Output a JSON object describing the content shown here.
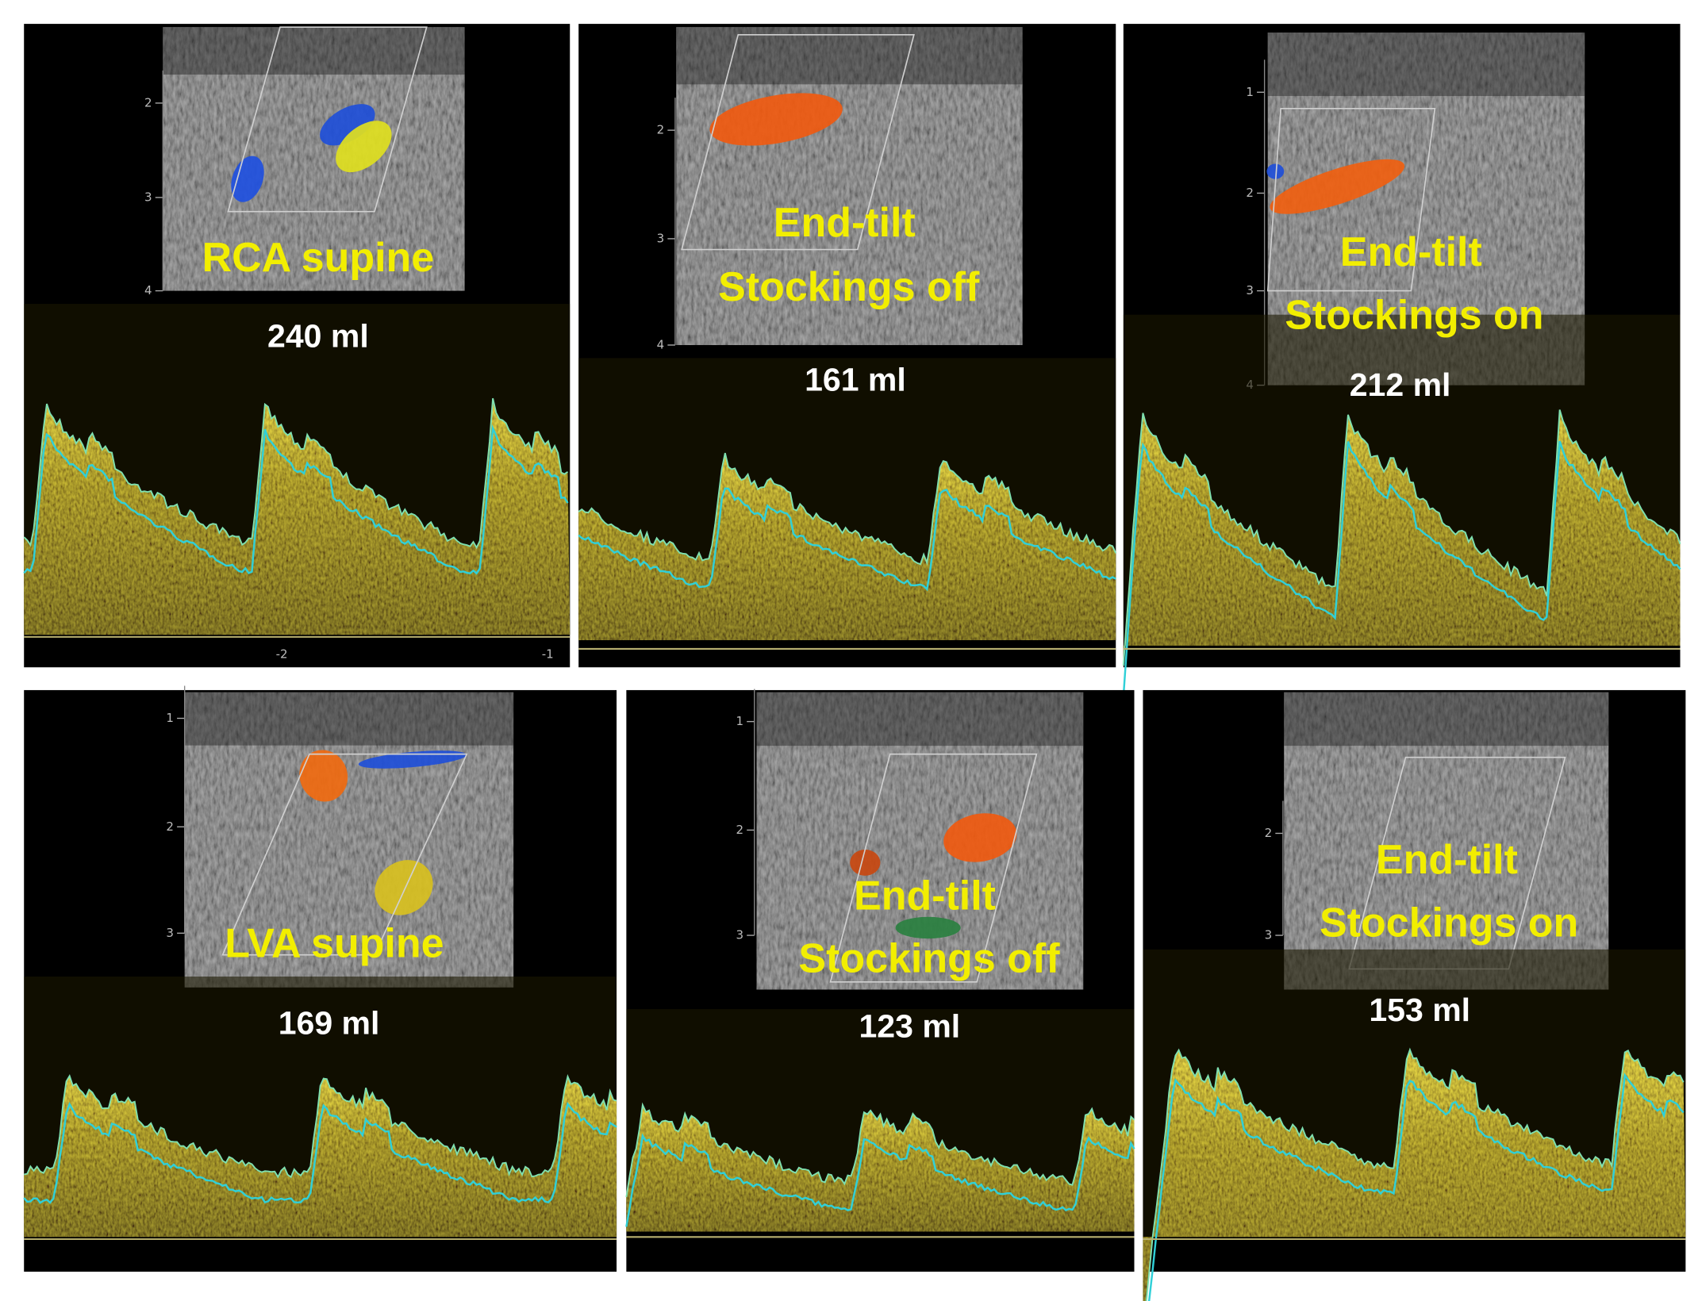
{
  "panels": [
    {
      "lines": [
        "RCA supine"
      ],
      "volume": "240 ml",
      "depth_labels": [
        "2",
        "3",
        "4"
      ],
      "time_labels": [
        "-2",
        "-1"
      ]
    },
    {
      "lines": [
        "End-tilt",
        "Stockings off"
      ],
      "volume": "161 ml",
      "depth_labels": [
        "2",
        "3",
        "4"
      ]
    },
    {
      "lines": [
        "End-tilt",
        "Stockings on"
      ],
      "volume": "212 ml",
      "depth_labels": [
        "1",
        "2",
        "3",
        "4"
      ]
    },
    {
      "lines": [
        "LVA supine"
      ],
      "volume": "169 ml",
      "depth_labels": [
        "1",
        "2",
        "3"
      ]
    },
    {
      "lines": [
        "End-tilt",
        "Stockings off"
      ],
      "volume": "123 ml",
      "depth_labels": [
        "1",
        "2",
        "3"
      ]
    },
    {
      "lines": [
        "End-tilt",
        "Stockings on"
      ],
      "volume": "153 ml",
      "depth_labels": [
        "2",
        "3"
      ]
    }
  ]
}
